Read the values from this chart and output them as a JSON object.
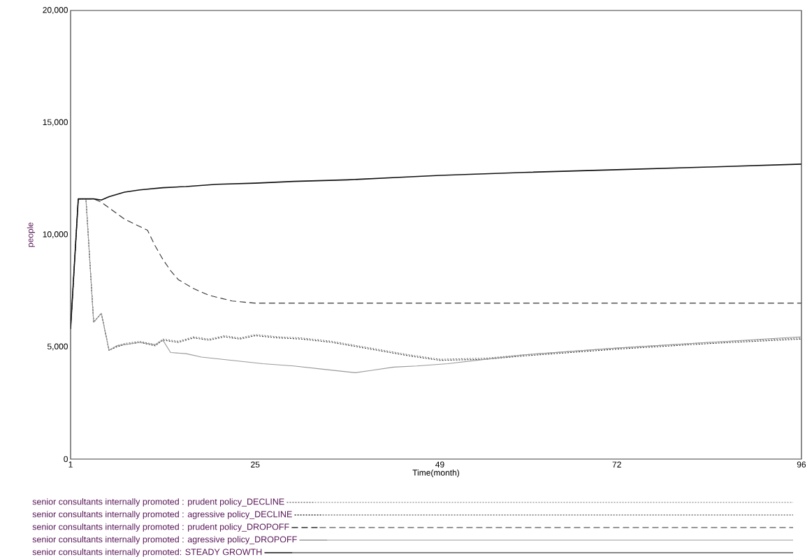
{
  "chart_data": {
    "type": "line",
    "xlabel": "Time(month)",
    "ylabel": "people",
    "xlim": [
      1,
      96
    ],
    "xticks": [
      1,
      25,
      49,
      72,
      96
    ],
    "ylim": [
      0,
      20000
    ],
    "yticks": [
      {
        "value": 0,
        "label": "0"
      },
      {
        "value": 5000,
        "label": "5,000"
      },
      {
        "value": 10000,
        "label": "10,000"
      },
      {
        "value": 15000,
        "label": "15,000"
      },
      {
        "value": 20000,
        "label": "20,000"
      }
    ],
    "grid": false,
    "legend": "bottom",
    "marker": "none",
    "series": [
      {
        "name": "senior consultants internally promoted : prudent policy_DECLINE",
        "color": "#777777",
        "line_style": "dotted",
        "x": [
          1,
          2,
          3,
          4,
          5,
          6,
          7,
          8,
          10,
          12,
          13,
          15,
          17,
          19,
          21,
          23,
          25,
          28,
          31,
          35,
          40,
          45,
          49,
          55,
          60,
          72,
          84,
          96
        ],
        "values": [
          5800,
          11600,
          11600,
          6100,
          6500,
          4850,
          5050,
          5150,
          5250,
          5100,
          5350,
          5250,
          5450,
          5350,
          5500,
          5400,
          5550,
          5450,
          5400,
          5250,
          4950,
          4650,
          4450,
          4500,
          4650,
          4950,
          5200,
          5400
        ]
      },
      {
        "name": "senior consultants internally promoted : agressive policy_DECLINE",
        "color": "#333333",
        "line_style": "dotted",
        "x": [
          1,
          2,
          3,
          4,
          5,
          6,
          7,
          8,
          10,
          12,
          13,
          15,
          17,
          19,
          21,
          23,
          25,
          28,
          31,
          35,
          40,
          45,
          49,
          55,
          60,
          72,
          84,
          96
        ],
        "values": [
          5800,
          11600,
          11600,
          6100,
          6500,
          4850,
          5000,
          5100,
          5200,
          5050,
          5300,
          5200,
          5400,
          5300,
          5450,
          5350,
          5500,
          5400,
          5350,
          5200,
          4900,
          4600,
          4400,
          4450,
          4600,
          4900,
          5150,
          5350
        ]
      },
      {
        "name": "senior consultants internally promoted : prudent policy_DROPOFF",
        "color": "#333333",
        "line_style": "dashed",
        "x": [
          1,
          2,
          3,
          4,
          5,
          8,
          11,
          12,
          13,
          14,
          15,
          17,
          19,
          22,
          25,
          49,
          72,
          96
        ],
        "values": [
          5800,
          11600,
          11600,
          11600,
          11450,
          10700,
          10200,
          9500,
          8900,
          8400,
          8000,
          7600,
          7300,
          7050,
          6950,
          6950,
          6950,
          6950
        ]
      },
      {
        "name": "senior consultants internally promoted : agressive policy_DROPOFF",
        "color": "#999999",
        "line_style": "solid",
        "x": [
          1,
          2,
          3,
          4,
          5,
          6,
          7,
          8,
          10,
          12,
          13,
          14,
          16,
          18,
          22,
          26,
          30,
          34,
          38,
          40,
          43,
          46,
          50,
          55,
          60,
          72,
          84,
          96
        ],
        "values": [
          5800,
          11600,
          11600,
          6100,
          6500,
          4850,
          5050,
          5100,
          5200,
          5100,
          5300,
          4750,
          4700,
          4550,
          4400,
          4250,
          4150,
          4000,
          3850,
          3950,
          4100,
          4150,
          4250,
          4450,
          4650,
          4950,
          5200,
          5450
        ]
      },
      {
        "name": "senior consultants internally promoted: STEADY GROWTH",
        "color": "#111111",
        "line_style": "solid",
        "x": [
          1,
          2,
          3,
          4,
          5,
          6,
          8,
          10,
          13,
          16,
          20,
          25,
          30,
          37,
          49,
          60,
          72,
          84,
          96
        ],
        "values": [
          5800,
          11600,
          11600,
          11600,
          11550,
          11700,
          11900,
          12000,
          12100,
          12150,
          12250,
          12300,
          12380,
          12450,
          12650,
          12780,
          12900,
          13020,
          13150
        ]
      }
    ]
  }
}
